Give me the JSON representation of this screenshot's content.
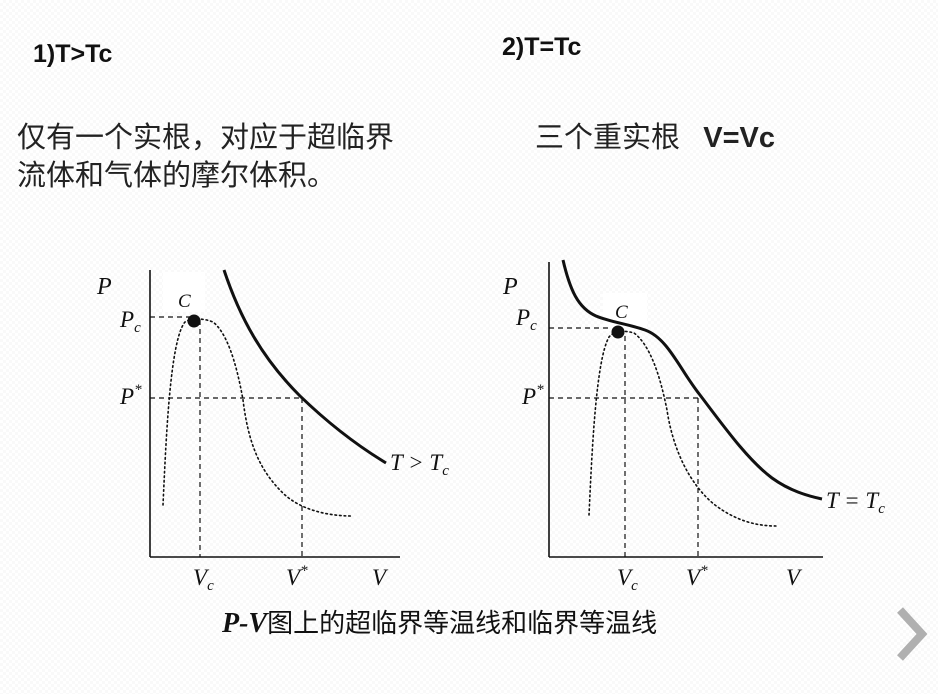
{
  "left": {
    "heading": "1)T>Tc",
    "desc_line1": "仅有一个实根，对应于超临界",
    "desc_line2": "流体和气体的摩尔体积。",
    "chart": {
      "p_label": "P",
      "pc_label": "P",
      "pc_sub": "c",
      "pstar_label": "P",
      "pstar_sup": "*",
      "c_label": "C",
      "vc_label": "V",
      "vc_sub": "c",
      "vstar_label": "V",
      "vstar_sup": "*",
      "v_label": "V",
      "curve_label": "T > T",
      "curve_sub": "c"
    }
  },
  "right": {
    "heading": "2)T=Tc",
    "desc_text": "三个重实根",
    "desc_bold": "V=Vc",
    "chart": {
      "p_label": "P",
      "pc_label": "P",
      "pc_sub": "c",
      "pstar_label": "P",
      "pstar_sup": "*",
      "c_label": "C",
      "vc_label": "V",
      "vc_sub": "c",
      "vstar_label": "V",
      "vstar_sup": "*",
      "v_label": "V",
      "curve_label": "T = T",
      "curve_sub": "c"
    }
  },
  "caption": {
    "pv": "P-V",
    "text": "图上的超临界等温线和临界等温线"
  },
  "nav": {
    "next_icon": "chevron-right-icon",
    "color": "#b0b0b0"
  }
}
